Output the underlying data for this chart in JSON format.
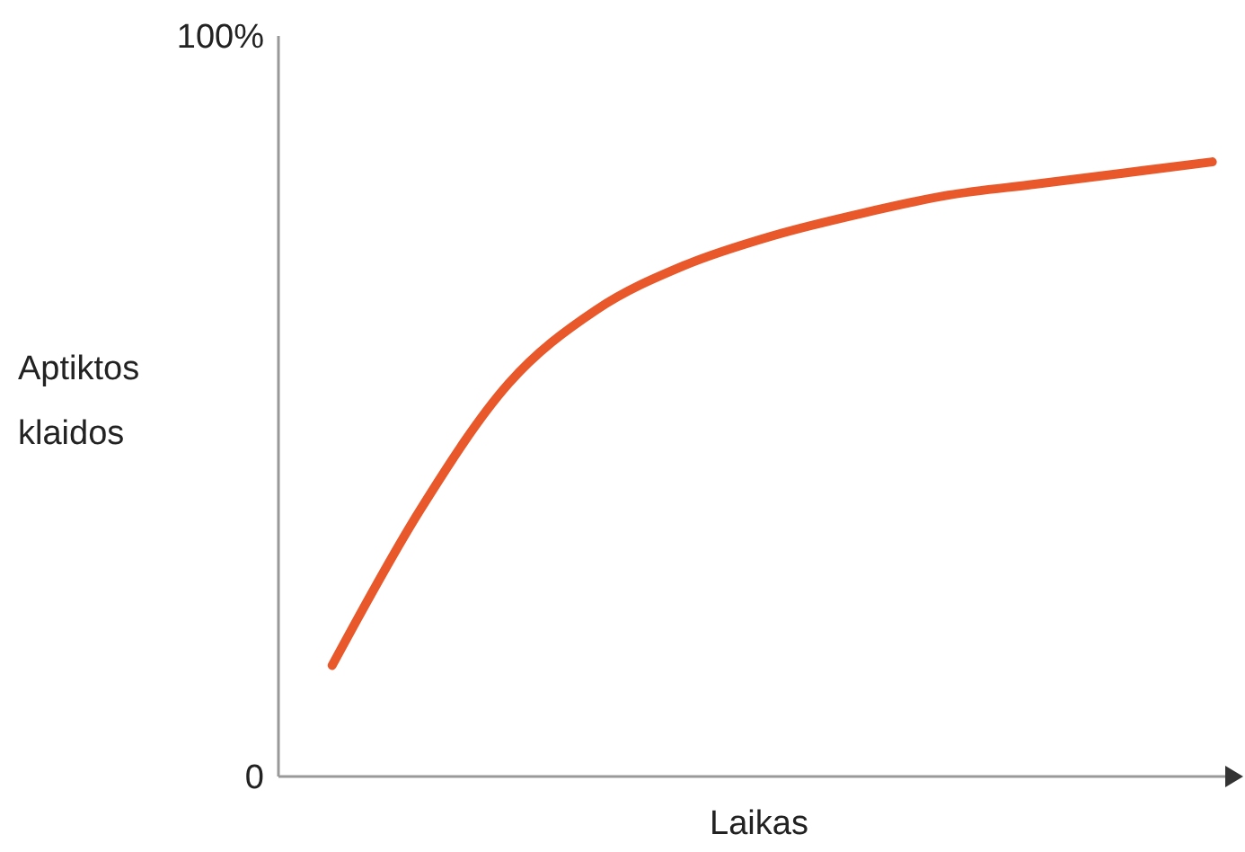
{
  "chart_data": {
    "type": "line",
    "xlabel": "Laikas",
    "ylabel": "Aptiktos klaidos",
    "categories": [
      null,
      null,
      null,
      null,
      null,
      null,
      null,
      null,
      null,
      null,
      null
    ],
    "series": [
      {
        "color": "#e8582a",
        "values": [
          15,
          36,
          53,
          63,
          69,
          73,
          76,
          78.5,
          80,
          81.5,
          83
        ]
      }
    ],
    "ylim": [
      0,
      100
    ],
    "yticks": [
      0,
      {
        "value": 100,
        "label": "100%"
      }
    ],
    "tick_labels": "y",
    "marker": "none",
    "line_style": "solid"
  }
}
